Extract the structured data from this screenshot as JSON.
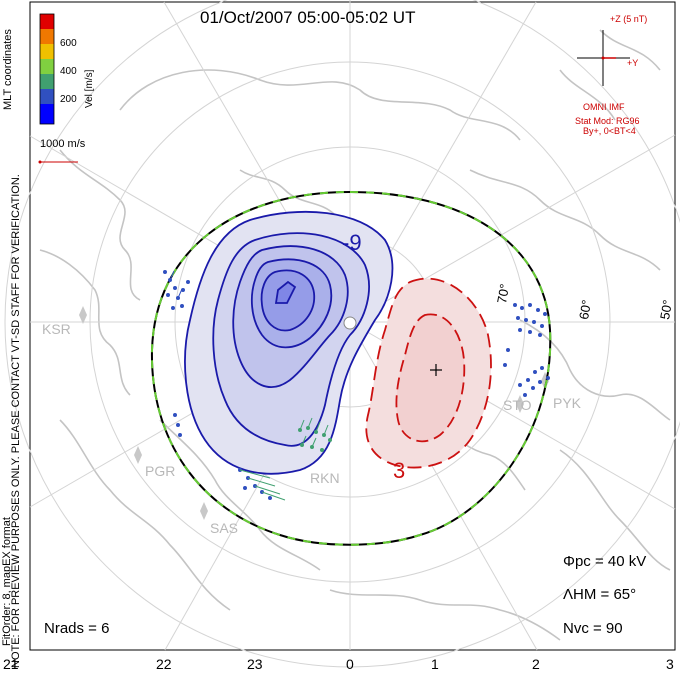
{
  "title": "01/Oct/2007 05:00-05:02 UT",
  "sidebar": {
    "line1": "NOTE: FOR PREVIEW PURPOSES ONLY. PLEASE CONTACT VT-SD STAFF FOR VERIFICATION.",
    "line2": "FitOrder: 8, mapEX format",
    "coords": "MLT coordinates"
  },
  "colorbar": {
    "label": "Vel [m/s]",
    "ticks": [
      "600",
      "400",
      "200"
    ],
    "colors": [
      "#e00000",
      "#f07800",
      "#f0c000",
      "#80d040",
      "#40a070",
      "#3050c0",
      "#0000ff"
    ]
  },
  "vector_scale": {
    "label": "1000 m/s"
  },
  "imf": {
    "z_label": "+Z (5 nT)",
    "y_label": "+Y",
    "source": "OMNI IMF",
    "stat_mod": "Stat Mod: RG96",
    "conditions": "By+, 0<BT<4"
  },
  "contours": {
    "negative_label": "-9",
    "positive_label": "3"
  },
  "latitude_labels": [
    "70°",
    "60°",
    "50°"
  ],
  "radar_labels": [
    "KSR",
    "PGR",
    "SAS",
    "RKN",
    "STO",
    "PYK"
  ],
  "stats": {
    "phi_pc": "Φpc = 40 kV",
    "lambda_hm": "ΛHM = 65°",
    "n_vc": "Nvc = 90",
    "n_rads": "Nrads = 6"
  },
  "mlt_axis": [
    "21",
    "22",
    "23",
    "0",
    "1",
    "2",
    "3"
  ],
  "colors": {
    "negative_cell": "#1a1aaa",
    "positive_cell": "#cc1111",
    "hm_boundary": "#66cc33",
    "coast": "#c4c4c4"
  }
}
